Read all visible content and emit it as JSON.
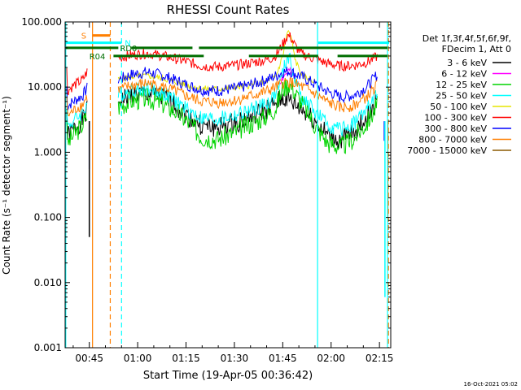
{
  "chart_data": {
    "type": "line",
    "title": "RHESSI Count Rates",
    "xlabel": "Start Time (19-Apr-05 00:36:42)",
    "ylabel": "Count Rate (s⁻¹ detector segment⁻¹)",
    "yscale": "log",
    "ylim": [
      0.001,
      100
    ],
    "xlim_minutes_after_00_30": [
      7.5,
      108.5
    ],
    "x_ticks": [
      {
        "label": "00:45",
        "m": 15
      },
      {
        "label": "01:00",
        "m": 30
      },
      {
        "label": "01:15",
        "m": 45
      },
      {
        "label": "01:30",
        "m": 60
      },
      {
        "label": "01:45",
        "m": 75
      },
      {
        "label": "02:00",
        "m": 90
      },
      {
        "label": "02:15",
        "m": 105
      }
    ],
    "y_ticks": [
      {
        "label": "0.001",
        "v": 0.001
      },
      {
        "label": "0.010",
        "v": 0.01
      },
      {
        "label": "0.100",
        "v": 0.1
      },
      {
        "label": "1.000",
        "v": 1
      },
      {
        "label": "10.000",
        "v": 10
      },
      {
        "label": "100.000",
        "v": 100
      }
    ],
    "legend": {
      "placement": "right",
      "header": [
        "Det 1f,3f,4f,5f,6f,9f,",
        "FDecim 1, Att 0"
      ],
      "entries": [
        {
          "label": "3 - 6 keV",
          "color": "#000000"
        },
        {
          "label": "6 - 12 keV",
          "color": "#ff00ff"
        },
        {
          "label": "12 - 25 keV",
          "color": "#00d400"
        },
        {
          "label": "25 - 50 keV",
          "color": "#00ffff"
        },
        {
          "label": "50 - 100 keV",
          "color": "#e6e600"
        },
        {
          "label": "100 - 300 keV",
          "color": "#ff0000"
        },
        {
          "label": "300 - 800 keV",
          "color": "#0000ff"
        },
        {
          "label": "800 - 7000 keV",
          "color": "#ff7f00"
        },
        {
          "label": "7000 - 15000 keV",
          "color": "#8b5a00"
        }
      ]
    },
    "series": [
      {
        "name": "3 - 6 keV",
        "color": "#000000",
        "noise": 0.16,
        "seed": 1,
        "segments": [
          {
            "x": [
              8.0,
              10,
              13,
              14.5
            ],
            "y": [
              1.7,
              2.2,
              3.2,
              4.5
            ]
          },
          {
            "x": [
              24,
              28,
              33,
              38,
              42,
              46,
              50,
              55,
              60,
              64,
              68,
              71,
              73,
              75,
              77,
              79,
              82,
              85,
              89,
              93,
              97,
              101,
              103,
              104.5
            ],
            "y": [
              6.0,
              7.5,
              8.0,
              6.8,
              5.2,
              3.5,
              2.5,
              2.4,
              2.8,
              3.3,
              4.0,
              4.8,
              5.6,
              6.8,
              6.3,
              5.2,
              4.2,
              3.0,
              1.8,
              1.5,
              2.0,
              3.4,
              4.8,
              6.5
            ]
          }
        ]
      },
      {
        "name": "6 - 12 keV",
        "color": "#ff00ff",
        "noise": 0.06,
        "seed": 2,
        "segments": [
          {
            "x": [
              74,
              76,
              77,
              78,
              80
            ],
            "y": [
              12,
              16,
              18,
              15,
              12
            ]
          }
        ]
      },
      {
        "name": "12 - 25 keV",
        "color": "#00d400",
        "noise": 0.16,
        "seed": 3,
        "segments": [
          {
            "x": [
              8.0,
              10,
              13,
              14.5
            ],
            "y": [
              1.3,
              1.8,
              2.7,
              3.8
            ]
          },
          {
            "x": [
              24,
              28,
              33,
              38,
              42,
              46,
              50,
              55,
              60,
              64,
              68,
              71,
              73,
              75,
              77,
              79,
              82,
              85,
              89,
              93,
              97,
              101,
              103,
              104.5
            ],
            "y": [
              5.0,
              6.2,
              6.8,
              5.5,
              4.2,
              2.8,
              1.7,
              1.6,
              2.0,
              2.6,
              3.2,
              3.9,
              5.0,
              9.5,
              11.5,
              8.0,
              4.8,
              2.6,
              1.4,
              1.2,
              1.6,
              2.8,
              4.0,
              5.6
            ]
          }
        ]
      },
      {
        "name": "25 - 50 keV",
        "color": "#00ffff",
        "noise": 0.12,
        "seed": 4,
        "segments": [
          {
            "x": [
              8.0,
              10,
              13,
              14.5
            ],
            "y": [
              2.4,
              3.0,
              4.2,
              5.8
            ]
          },
          {
            "x": [
              24,
              28,
              33,
              38,
              42,
              46,
              50,
              55,
              60,
              64,
              68,
              71,
              73,
              75,
              76.5,
              77.5,
              79,
              81,
              85,
              89,
              93,
              97,
              101,
              103,
              104.5
            ],
            "y": [
              7.5,
              9.0,
              9.5,
              8.0,
              6.0,
              4.3,
              3.3,
              3.2,
              3.6,
              4.2,
              5.0,
              6.0,
              8.0,
              16,
              30,
              24,
              12,
              7.0,
              4.2,
              2.6,
              2.2,
              2.8,
              4.5,
              6.2,
              8.0
            ]
          }
        ]
      },
      {
        "name": "50 - 100 keV",
        "color": "#e6e600",
        "noise": 0.05,
        "seed": 5,
        "segments": [
          {
            "x": [
              24,
              28,
              33,
              38,
              42,
              46,
              50,
              55,
              60,
              64,
              68,
              71,
              73,
              75,
              76.5,
              77.5,
              79,
              81,
              85
            ],
            "y": [
              13,
              14.5,
              15,
              13.5,
              12,
              10.5,
              9.5,
              9.3,
              9.8,
              10.5,
              11.5,
              12.5,
              15,
              30,
              72,
              60,
              25,
              15,
              12
            ]
          }
        ]
      },
      {
        "name": "100 - 300 keV",
        "color": "#ff0000",
        "noise": 0.08,
        "seed": 6,
        "segments": [
          {
            "x": [
              8.0,
              10,
              13,
              14.5
            ],
            "y": [
              8.5,
              10.5,
              13,
              18
            ]
          },
          {
            "x": [
              24,
              28,
              33,
              38,
              42,
              46,
              50,
              55,
              60,
              64,
              68,
              71,
              73,
              75,
              76.5,
              77.5,
              79,
              81,
              85,
              89,
              93,
              97,
              101,
              103,
              104.5
            ],
            "y": [
              28,
              31,
              33,
              30,
              27,
              24,
              21,
              20.5,
              21.5,
              23,
              25,
              27,
              31,
              45,
              62,
              58,
              42,
              32,
              27,
              23,
              21,
              21.5,
              24,
              27,
              30
            ]
          }
        ]
      },
      {
        "name": "300 - 800 keV",
        "color": "#0000ff",
        "noise": 0.09,
        "seed": 7,
        "segments": [
          {
            "x": [
              8.0,
              10,
              13,
              14.5
            ],
            "y": [
              5.0,
              6.0,
              7.5,
              10
            ]
          },
          {
            "x": [
              24,
              28,
              33,
              38,
              42,
              46,
              50,
              55,
              60,
              64,
              68,
              71,
              73,
              75,
              77,
              79,
              82,
              85,
              89,
              93,
              97,
              101,
              103,
              104.5
            ],
            "y": [
              13,
              15.5,
              17,
              15,
              12.5,
              10.5,
              9.0,
              8.8,
              9.5,
              10.5,
              12,
              13.5,
              15,
              17,
              17.5,
              16,
              13.5,
              11,
              8.5,
              7.0,
              7.5,
              10,
              13,
              16
            ]
          }
        ]
      },
      {
        "name": "800 - 7000 keV",
        "color": "#ff7f00",
        "noise": 0.09,
        "seed": 8,
        "segments": [
          {
            "x": [
              8.0,
              10,
              13,
              14.5
            ],
            "y": [
              3.5,
              4.3,
              5.5,
              7.5
            ]
          },
          {
            "x": [
              24,
              28,
              33,
              38,
              42,
              46,
              50,
              55,
              60,
              64,
              68,
              71,
              73,
              75,
              77,
              79,
              82,
              85,
              89,
              93,
              97,
              101,
              103,
              104.5
            ],
            "y": [
              9.0,
              10.5,
              11.5,
              10,
              8.5,
              7.0,
              6.0,
              5.8,
              6.2,
              7.0,
              8.0,
              9.0,
              10,
              11.5,
              12,
              11,
              9.5,
              7.8,
              5.8,
              4.8,
              5.2,
              7.0,
              9.0,
              11
            ]
          }
        ]
      }
    ],
    "vertical_markers": [
      {
        "m": 7.7,
        "color": "#00ffff",
        "dashed": false
      },
      {
        "m": 16.0,
        "color": "#ff7f00",
        "dashed": false
      },
      {
        "m": 21.5,
        "color": "#ff7f00",
        "dashed": true
      },
      {
        "m": 25.0,
        "color": "#00ffff",
        "dashed": true
      },
      {
        "m": 85.8,
        "color": "#00ffff",
        "dashed": false
      },
      {
        "m": 107.5,
        "color": "#00ffff",
        "dashed": false
      },
      {
        "m": 107.8,
        "color": "#ff7f00",
        "dashed": true
      }
    ],
    "drop_spikes": [
      {
        "m": 15.0,
        "color": "#0000ff",
        "v": 0.55
      },
      {
        "m": 15.0,
        "color": "#000000",
        "v": 0.05
      },
      {
        "m": 106.5,
        "color": "#0000ff",
        "v": 1.5
      },
      {
        "m": 106.7,
        "color": "#00ffff",
        "v": 0.006
      },
      {
        "m": 107.6,
        "color": "#ff7f00",
        "v": 0.1
      }
    ],
    "flag_bars": [
      {
        "label": "S",
        "color": "#ff7f00",
        "y": 62,
        "segments": [
          [
            16.0,
            21.5
          ]
        ],
        "label_m": 12.5
      },
      {
        "label": "N",
        "color": "#00ffff",
        "y": 48,
        "segments": [
          [
            7.7,
            25.0
          ],
          [
            86.0,
            108.0
          ]
        ],
        "label_m": 26.0
      },
      {
        "label": "RD0",
        "color": "#006e00",
        "y": 40,
        "segments": [
          [
            7.7,
            24.0
          ],
          [
            28.0,
            47.0
          ],
          [
            49.0,
            107.5
          ]
        ],
        "label_m": 24.5
      },
      {
        "label": "R04",
        "color": "#006e00",
        "y": 30,
        "segments": [
          [
            22.5,
            50.5
          ],
          [
            64.5,
            86.0
          ],
          [
            92.0,
            107.5
          ]
        ],
        "label_m": 15.0
      }
    ]
  },
  "footer": {
    "timestamp": "16-Oct-2021 05:02"
  }
}
